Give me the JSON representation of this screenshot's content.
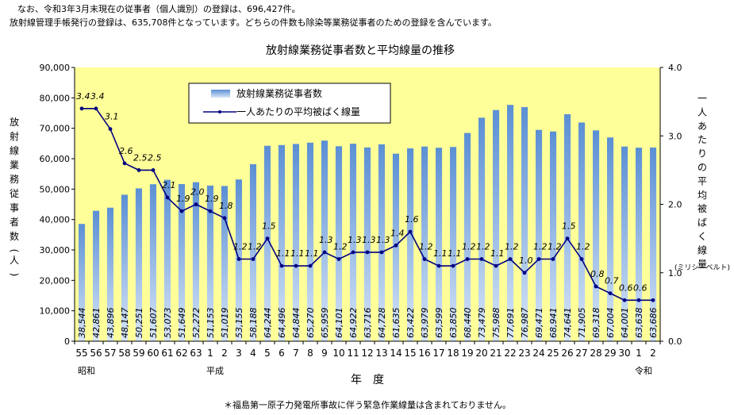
{
  "notes": {
    "line1": "なお、令和3年3月末現在の従事者（個人識別）の登録は、696,427件。",
    "line2": "放射線管理手帳発行の登録は、635,708件となっています。どちらの件数も除染等業務従事者のための登録を含んでいます。"
  },
  "footnote": "＊福島第一原子力発電所事故に伴う緊急作業線量は含まれておりません。",
  "colors": {
    "plot_bg": "#ffff99",
    "bar_top": "#5b8fd4",
    "bar_bottom": "#d8e6f7",
    "line": "#000080",
    "axis": "#000000"
  },
  "chart_data": {
    "type": "bar",
    "title": "放射線業務従事者数と平均線量の推移",
    "xlabel": "年　度",
    "ylabel": "放射線業務従事者数(人)",
    "y2label": "一人あたりの平均被ばく線量",
    "y2label_unit": "(ミリシーベルト)",
    "ylim": [
      0,
      90000
    ],
    "y2lim": [
      0,
      4.0
    ],
    "y_ticks": [
      "0",
      "10,000",
      "20,000",
      "30,000",
      "40,000",
      "50,000",
      "60,000",
      "70,000",
      "80,000",
      "90,000"
    ],
    "y2_ticks": [
      "0.0",
      "1.0",
      "2.0",
      "3.0",
      "4.0"
    ],
    "grid": false,
    "legend_position": "top-left",
    "era_labels": [
      {
        "text": "昭和",
        "category_index": 0
      },
      {
        "text": "平成",
        "category_index": 9
      },
      {
        "text": "令和",
        "category_index": 39
      }
    ],
    "categories": [
      "55",
      "56",
      "57",
      "58",
      "59",
      "60",
      "61",
      "62",
      "63",
      "1",
      "2",
      "3",
      "4",
      "5",
      "6",
      "7",
      "8",
      "9",
      "10",
      "11",
      "12",
      "13",
      "14",
      "15",
      "16",
      "17",
      "18",
      "19",
      "20",
      "21",
      "22",
      "23",
      "24",
      "25",
      "26",
      "27",
      "28",
      "29",
      "30",
      "1",
      "2"
    ],
    "series": [
      {
        "name": "放射線業務従事者数",
        "kind": "bar",
        "values": [
          38544,
          42861,
          43896,
          48147,
          50251,
          51607,
          53073,
          51649,
          52272,
          51153,
          51019,
          53155,
          58188,
          64244,
          64496,
          64844,
          65270,
          65959,
          64101,
          64922,
          63716,
          64728,
          61635,
          63422,
          63979,
          63599,
          63850,
          68440,
          73479,
          75988,
          77691,
          76987,
          69471,
          68941,
          74641,
          71905,
          69318,
          67004,
          64001,
          63638,
          63686
        ],
        "labels": [
          "38,544",
          "42,861",
          "43,896",
          "48,147",
          "50,251",
          "51,607",
          "53,073",
          "51,649",
          "52,272",
          "51,153",
          "51,019",
          "53,155",
          "58,188",
          "64,244",
          "64,496",
          "64,844",
          "65,270",
          "65,959",
          "64,101",
          "64,922",
          "63,716",
          "64,728",
          "61,635",
          "63,422",
          "63,979",
          "63,599",
          "63,850",
          "68,440",
          "73,479",
          "75,988",
          "77,691",
          "76,987",
          "69,471",
          "68,941",
          "74,641",
          "71,905",
          "69,318",
          "67,004",
          "64,001",
          "63,638",
          "63,686"
        ]
      },
      {
        "name": "一人あたりの平均被ばく線量",
        "kind": "line",
        "values": [
          3.4,
          3.4,
          3.1,
          2.6,
          2.5,
          2.5,
          2.1,
          1.9,
          2.0,
          1.9,
          1.8,
          1.2,
          1.2,
          1.5,
          1.1,
          1.1,
          1.1,
          1.3,
          1.2,
          1.3,
          1.3,
          1.3,
          1.4,
          1.6,
          1.2,
          1.1,
          1.1,
          1.2,
          1.2,
          1.1,
          1.2,
          1.0,
          1.2,
          1.2,
          1.5,
          1.2,
          0.8,
          0.7,
          0.6,
          0.6,
          0.6
        ],
        "labels": [
          "3.4",
          "3.4",
          "3.1",
          "2.6",
          "2.5",
          "2.5",
          "2.1",
          "1.9",
          "2.0",
          "1.9",
          "1.8",
          "1.2",
          "1.2",
          "1.5",
          "1.1",
          "1.1",
          "1.1",
          "1.3",
          "1.2",
          "1.3",
          "1.3",
          "1.3",
          "1.4",
          "1.6",
          "1.2",
          "1.1",
          "1.1",
          "1.2",
          "1.2",
          "1.1",
          "1.2",
          "1.0",
          "1.2",
          "1.2",
          "1.5",
          "1.2",
          "0.8",
          "0.7",
          "0.6",
          "0.6",
          ""
        ]
      }
    ]
  }
}
